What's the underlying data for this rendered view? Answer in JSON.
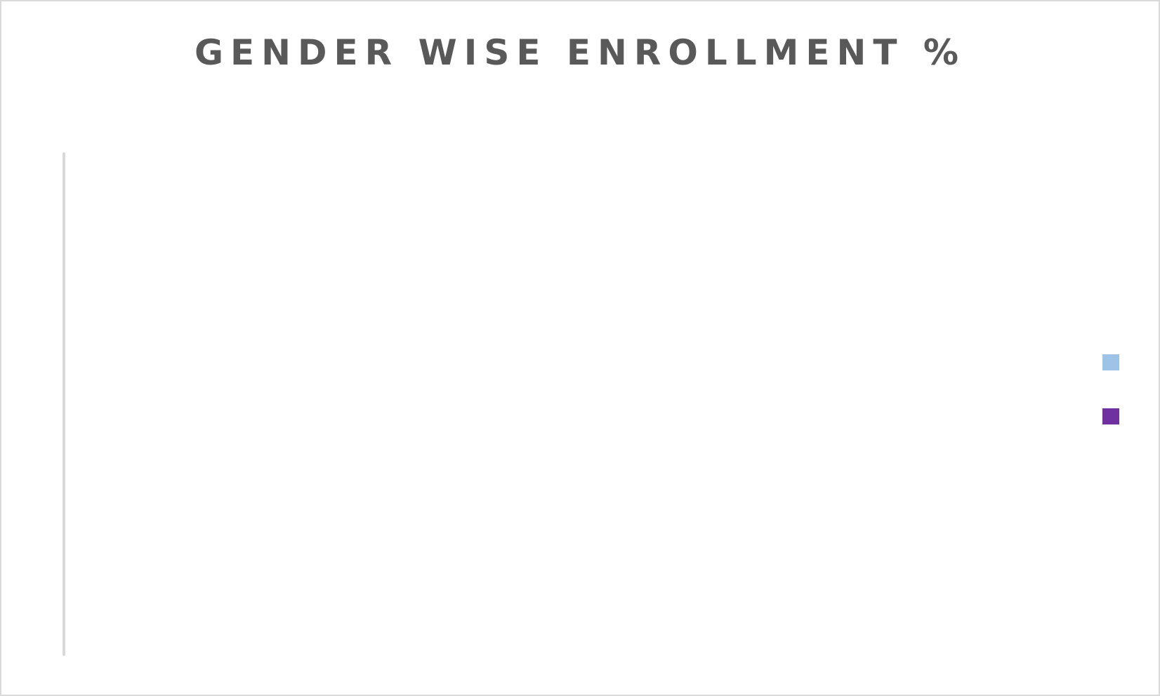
{
  "chart_data": {
    "type": "bar",
    "title": "GENDER WISE ENROLLMENT %",
    "xlabel": "",
    "ylabel": "",
    "categories": [],
    "series": [
      {
        "color": "#9dc3e6",
        "values": []
      },
      {
        "color": "#7030a0",
        "values": []
      }
    ],
    "grid": false,
    "legend_position": "right"
  },
  "colors": {
    "axis": "#d9d9d9",
    "title": "#595959",
    "frame": "#d9d9d9"
  }
}
